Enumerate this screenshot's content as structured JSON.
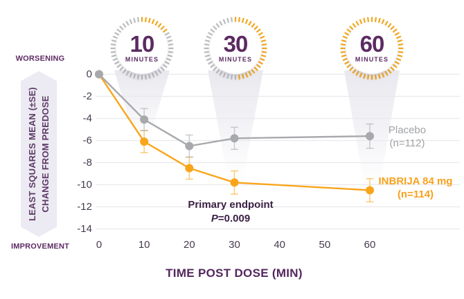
{
  "header_badges": [
    {
      "value": "10",
      "unit": "MINUTES",
      "minutes": 10
    },
    {
      "value": "30",
      "unit": "MINUTES",
      "minutes": 30
    },
    {
      "value": "60",
      "unit": "MINUTES",
      "minutes": 60
    }
  ],
  "axis_arrow": {
    "top_label": "WORSENING",
    "bottom_label": "IMPROVEMENT",
    "line1": "LEAST SQUARES MEAN (±SE)",
    "line2": "CHANGE FROM PREDOSE"
  },
  "chart_data": {
    "type": "line",
    "x": [
      0,
      10,
      20,
      30,
      60
    ],
    "series": [
      {
        "name": "Placebo",
        "label_line1": "Placebo",
        "label_line2": "(n=112)",
        "color": "#a7a9ac",
        "values": [
          0,
          -4.1,
          -6.5,
          -5.8,
          -5.6
        ],
        "se": [
          0,
          1.0,
          1.0,
          1.0,
          1.1
        ]
      },
      {
        "name": "INBRIJA 84 mg",
        "label_line1": "INBRIJA 84 mg",
        "label_line2": "(n=114)",
        "color": "#f9a51b",
        "values": [
          0,
          -6.1,
          -8.5,
          -9.8,
          -10.5
        ],
        "se": [
          0,
          1.0,
          1.0,
          1.05,
          1.05
        ]
      }
    ],
    "x_ticks": [
      0,
      10,
      20,
      30,
      40,
      50,
      60
    ],
    "y_ticks": [
      0,
      -2,
      -4,
      -6,
      -8,
      -10,
      -12,
      -14
    ],
    "ylim": [
      -14.5,
      0.5
    ],
    "xlabel": "TIME POST DOSE (MIN)",
    "ylabel": "LEAST SQUARES MEAN (±SE) CHANGE FROM PREDOSE",
    "grid": true,
    "legend_position": "right",
    "annotation": {
      "line1": "Primary endpoint",
      "p_italic": "P",
      "p_rest": "=0.009"
    }
  },
  "colors": {
    "brand_purple": "#5c2b62",
    "deep_purple": "#3b2145",
    "orange": "#f9a51b",
    "gray": "#a7a9ac",
    "grid": "#e9e9ec",
    "arrow_fill": "#eceaf2",
    "tick_label": "#463b4f",
    "badge_tick_gray": "#bcbdbf",
    "badge_tick_yellow": "#f2a71e",
    "beam": "#dcdce6"
  }
}
